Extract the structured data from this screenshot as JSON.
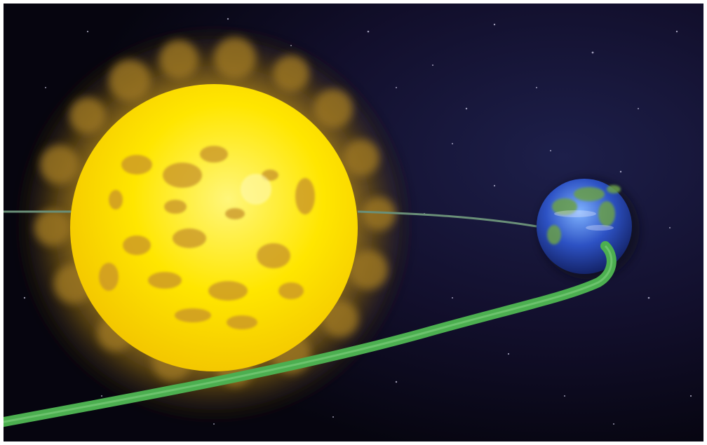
{
  "scene": {
    "description_free": true,
    "objects": {
      "sun": {
        "icon": "sun-icon"
      },
      "earth": {
        "icon": "earth-icon"
      },
      "orbit": {
        "icon": "orbit-path"
      }
    },
    "colors": {
      "space": "#090716",
      "sun_core": "#ffe400",
      "sun_corona": "#a0781e",
      "sun_spots": "#c8962a",
      "earth_ocean": "#2a4fc8",
      "earth_land": "#6aa04a",
      "orbit_green": "#4caf50",
      "orbit_thin": "#6a8f78"
    }
  }
}
